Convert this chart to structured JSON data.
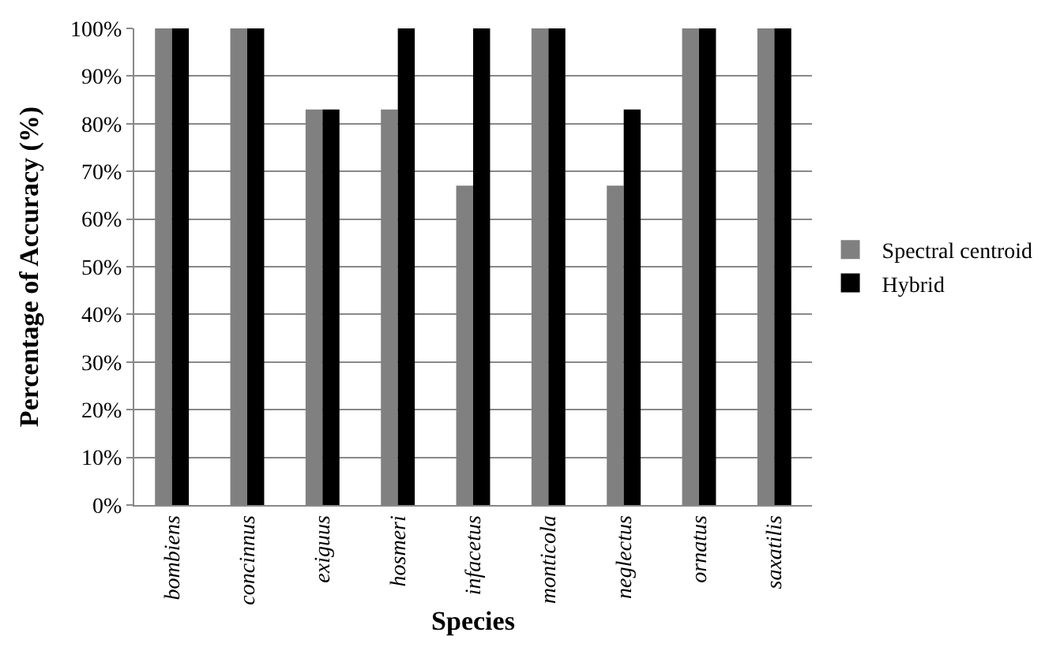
{
  "chart_data": {
    "type": "bar",
    "xlabel": "Species",
    "ylabel": "Percentage of Accuracy (%)",
    "categories": [
      "bombiens",
      "concinnus",
      "exiguus",
      "hosmeri",
      "infacetus",
      "monticola",
      "neglectus",
      "ornatus",
      "saxatilis"
    ],
    "series": [
      {
        "name": "Spectral centroid",
        "color": "#808080",
        "values": [
          100,
          100,
          83,
          83,
          67,
          100,
          67,
          100,
          100
        ]
      },
      {
        "name": "Hybrid",
        "color": "#000000",
        "values": [
          100,
          100,
          83,
          100,
          100,
          100,
          83,
          100,
          100
        ]
      }
    ],
    "ylim": [
      0,
      100
    ],
    "yticks": [
      {
        "value": 0,
        "label": "0%"
      },
      {
        "value": 10,
        "label": "10%"
      },
      {
        "value": 20,
        "label": "20%"
      },
      {
        "value": 30,
        "label": "30%"
      },
      {
        "value": 40,
        "label": "40%"
      },
      {
        "value": 50,
        "label": "50%"
      },
      {
        "value": 60,
        "label": "60%"
      },
      {
        "value": 70,
        "label": "70%"
      },
      {
        "value": 80,
        "label": "80%"
      },
      {
        "value": 90,
        "label": "90%"
      },
      {
        "value": 100,
        "label": "100%"
      }
    ],
    "grid": "y",
    "legend": "right"
  }
}
